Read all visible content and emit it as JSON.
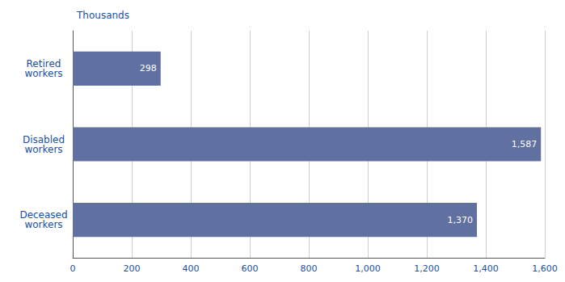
{
  "chart_data": {
    "type": "bar",
    "orientation": "horizontal",
    "xlabel": "Thousands",
    "categories": [
      "Retired\nworkers",
      "Disabled\nworkers",
      "Deceased\nworkers"
    ],
    "values": [
      298,
      1587,
      1370
    ],
    "value_labels": [
      "298",
      "1,587",
      "1,370"
    ],
    "data_labels": true,
    "color": "#6070a0",
    "xlim": [
      0,
      1600
    ],
    "xticks": [
      0,
      200,
      400,
      600,
      800,
      {
        "value": 1000,
        "label": "1,000"
      },
      {
        "value": 1200,
        "label": "1,200"
      },
      {
        "value": 1400,
        "label": "1,400"
      },
      {
        "value": 1600,
        "label": "1,600"
      }
    ],
    "grid": true
  }
}
